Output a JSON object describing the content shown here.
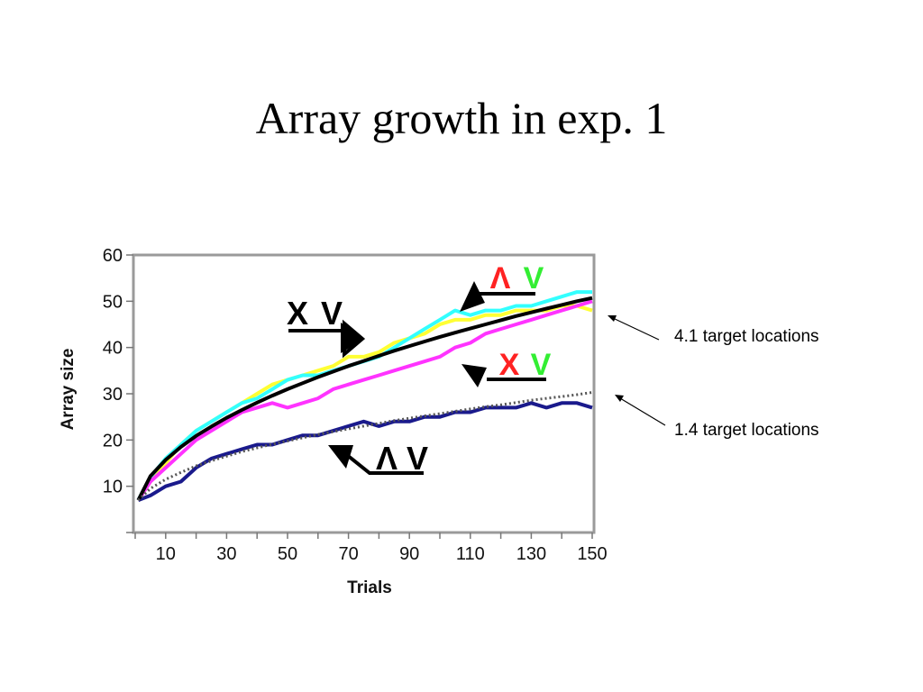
{
  "slide": {
    "title": "Array growth in exp. 1"
  },
  "colors": {
    "black": "#000000",
    "yellow": "#ffff33",
    "cyan": "#33ffff",
    "magenta": "#ff33ff",
    "navy": "#1a1a8c",
    "dotted": "#555555",
    "red": "#ff2222",
    "green": "#33ee33"
  },
  "chart_data": {
    "type": "line",
    "xlabel": "Trials",
    "ylabel": "Array size",
    "xlim": [
      0,
      150
    ],
    "ylim": [
      0,
      60
    ],
    "xticks": [
      10,
      30,
      50,
      70,
      90,
      110,
      130,
      150
    ],
    "yticks": [
      10,
      20,
      30,
      40,
      50,
      60
    ],
    "grid": false,
    "series": [
      {
        "key": "yellow",
        "color": "#ffff33",
        "x": [
          1,
          5,
          10,
          15,
          20,
          25,
          30,
          35,
          40,
          45,
          50,
          55,
          60,
          65,
          70,
          75,
          80,
          85,
          90,
          95,
          100,
          105,
          110,
          115,
          120,
          125,
          130,
          135,
          140,
          145,
          150
        ],
        "y": [
          7,
          11,
          15,
          19,
          22,
          24,
          26,
          28,
          30,
          32,
          33,
          34,
          35,
          36,
          38,
          38,
          39,
          41,
          42,
          43,
          45,
          46,
          46,
          47,
          47,
          48,
          48,
          48,
          49,
          49,
          48
        ]
      },
      {
        "key": "cyan",
        "color": "#33ffff",
        "x": [
          1,
          5,
          10,
          15,
          20,
          25,
          30,
          35,
          40,
          45,
          50,
          55,
          60,
          65,
          70,
          75,
          80,
          85,
          90,
          95,
          100,
          105,
          110,
          115,
          120,
          125,
          130,
          135,
          140,
          145,
          150
        ],
        "y": [
          7,
          12,
          16,
          19,
          22,
          24,
          26,
          28,
          29,
          31,
          33,
          34,
          34,
          35,
          36,
          37,
          38,
          40,
          42,
          44,
          46,
          48,
          47,
          48,
          48,
          49,
          49,
          50,
          51,
          52,
          52
        ]
      },
      {
        "key": "magenta",
        "color": "#ff33ff",
        "x": [
          1,
          5,
          10,
          15,
          20,
          25,
          30,
          35,
          40,
          45,
          50,
          55,
          60,
          65,
          70,
          75,
          80,
          85,
          90,
          95,
          100,
          105,
          110,
          115,
          120,
          125,
          130,
          135,
          140,
          145,
          150
        ],
        "y": [
          7,
          11,
          14,
          17,
          20,
          22,
          24,
          26,
          27,
          28,
          27,
          28,
          29,
          31,
          32,
          33,
          34,
          35,
          36,
          37,
          38,
          40,
          41,
          43,
          44,
          45,
          46,
          47,
          48,
          49,
          50
        ]
      },
      {
        "key": "navy",
        "color": "#1a1a8c",
        "x": [
          1,
          5,
          10,
          15,
          20,
          25,
          30,
          35,
          40,
          45,
          50,
          55,
          60,
          65,
          70,
          75,
          80,
          85,
          90,
          95,
          100,
          105,
          110,
          115,
          120,
          125,
          130,
          135,
          140,
          145,
          150
        ],
        "y": [
          7,
          8,
          10,
          11,
          14,
          16,
          17,
          18,
          19,
          19,
          20,
          21,
          21,
          22,
          23,
          24,
          23,
          24,
          24,
          25,
          25,
          26,
          26,
          27,
          27,
          27,
          28,
          27,
          28,
          28,
          27
        ]
      },
      {
        "key": "fit-4.1",
        "color": "#000000",
        "x": [
          1,
          5,
          10,
          15,
          20,
          25,
          30,
          35,
          40,
          45,
          50,
          55,
          60,
          65,
          70,
          75,
          80,
          85,
          90,
          95,
          100,
          105,
          110,
          115,
          120,
          125,
          130,
          135,
          140,
          145,
          150
        ],
        "y": [
          7,
          12.2,
          15.7,
          18.5,
          20.9,
          22.9,
          24.8,
          26.5,
          28.1,
          29.6,
          31,
          32.3,
          33.6,
          34.8,
          36,
          37.1,
          38.2,
          39.3,
          40.3,
          41.3,
          42.3,
          43.2,
          44.1,
          45,
          45.9,
          46.8,
          47.6,
          48.4,
          49.2,
          50,
          50.7
        ]
      },
      {
        "key": "fit-1.4",
        "color": "#555555",
        "dashed": true,
        "x": [
          1,
          5,
          10,
          15,
          20,
          25,
          30,
          35,
          40,
          45,
          50,
          55,
          60,
          65,
          70,
          75,
          80,
          85,
          90,
          95,
          100,
          105,
          110,
          115,
          120,
          125,
          130,
          135,
          140,
          145,
          150
        ],
        "y": [
          7,
          9.5,
          11.5,
          13,
          14.4,
          15.5,
          16.5,
          17.5,
          18.3,
          19.1,
          19.8,
          20.5,
          21.2,
          21.8,
          22.4,
          23,
          23.6,
          24.2,
          24.7,
          25.2,
          25.7,
          26.2,
          26.7,
          27.2,
          27.6,
          28.1,
          28.6,
          29,
          29.4,
          29.8,
          30.3
        ]
      }
    ],
    "labels": [
      {
        "key": "xv",
        "text": [
          "X",
          "V"
        ]
      },
      {
        "key": "av-top",
        "text": [
          "Λ",
          "V"
        ]
      },
      {
        "key": "xv-color",
        "text": [
          "X",
          "V"
        ]
      },
      {
        "key": "av-bottom",
        "text": [
          "Λ",
          "V"
        ]
      }
    ]
  },
  "annotations": [
    {
      "text": "4.1 target locations"
    },
    {
      "text": "1.4 target locations"
    }
  ]
}
